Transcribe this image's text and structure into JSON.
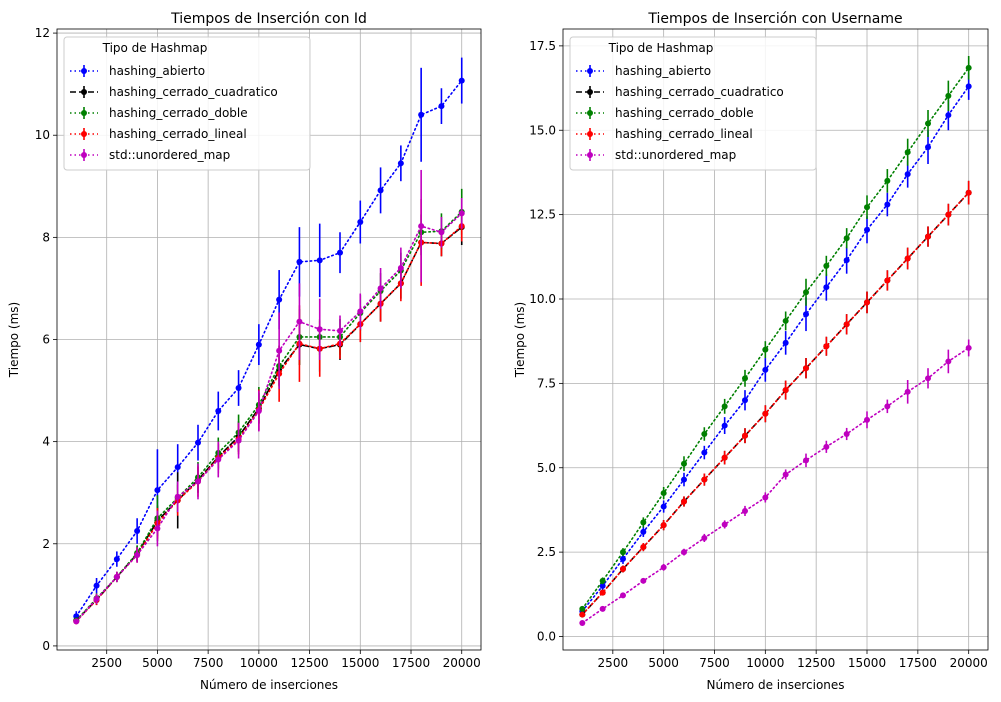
{
  "chart_data": [
    {
      "type": "line",
      "title": "Tiempos de Inserción con Id",
      "xlabel": "Número de inserciones",
      "ylabel": "Tiempo (ms)",
      "xlim": [
        50,
        20950
      ],
      "ylim": [
        -0.08,
        12.08
      ],
      "xticks": [
        2500,
        5000,
        7500,
        10000,
        12500,
        15000,
        17500,
        20000
      ],
      "xtick_labels": [
        "2500",
        "5000",
        "7500",
        "10000",
        "12500",
        "15000",
        "17500",
        "20000"
      ],
      "yticks": [
        0,
        2,
        4,
        6,
        8,
        10,
        12
      ],
      "ytick_labels": [
        "0",
        "2",
        "4",
        "6",
        "8",
        "10",
        "12"
      ],
      "grid": true,
      "legend_title": "Tipo de Hashmap",
      "legend_placement": "upper-left",
      "x": [
        1000,
        2000,
        3000,
        4000,
        5000,
        6000,
        7000,
        8000,
        9000,
        10000,
        11000,
        12000,
        13000,
        14000,
        15000,
        16000,
        17000,
        18000,
        19000,
        20000
      ],
      "series": [
        {
          "name": "hashing_abierto",
          "color": "#0000ff",
          "dash": "dotted",
          "values": [
            0.58,
            1.18,
            1.7,
            2.25,
            3.05,
            3.5,
            3.98,
            4.6,
            5.05,
            5.9,
            6.78,
            7.52,
            7.55,
            7.7,
            8.3,
            8.92,
            9.45,
            10.4,
            10.57,
            11.07
          ],
          "errors": [
            0.1,
            0.15,
            0.15,
            0.25,
            0.8,
            0.45,
            0.35,
            0.38,
            0.35,
            0.4,
            0.58,
            0.68,
            0.72,
            0.4,
            0.42,
            0.45,
            0.35,
            0.92,
            0.35,
            0.45
          ]
        },
        {
          "name": "hashing_cerrado_cuadratico",
          "color": "#000000",
          "dash": "dashed",
          "values": [
            0.5,
            0.9,
            1.35,
            1.8,
            2.45,
            2.85,
            3.25,
            3.7,
            4.1,
            4.65,
            5.4,
            5.9,
            5.82,
            5.9,
            6.3,
            6.7,
            7.1,
            7.9,
            7.88,
            8.2
          ],
          "errors": [
            0.05,
            0.1,
            0.1,
            0.15,
            0.3,
            0.55,
            0.25,
            0.25,
            0.3,
            0.3,
            0.3,
            0.4,
            0.45,
            0.3,
            0.35,
            0.35,
            0.3,
            0.25,
            0.25,
            0.35
          ]
        },
        {
          "name": "hashing_cerrado_doble",
          "color": "#008000",
          "dash": "dotted",
          "values": [
            0.5,
            0.93,
            1.35,
            1.82,
            2.5,
            2.9,
            3.3,
            3.78,
            4.18,
            4.72,
            5.48,
            6.05,
            6.05,
            6.05,
            6.52,
            6.95,
            7.35,
            8.1,
            8.12,
            8.5
          ],
          "errors": [
            0.05,
            0.1,
            0.1,
            0.15,
            0.45,
            0.3,
            0.3,
            0.3,
            0.35,
            0.35,
            0.4,
            0.55,
            0.35,
            0.35,
            0.35,
            0.35,
            0.35,
            0.35,
            0.35,
            0.45
          ]
        },
        {
          "name": "hashing_cerrado_lineal",
          "color": "#ff0000",
          "dash": "dotted",
          "values": [
            0.48,
            0.9,
            1.35,
            1.78,
            2.4,
            2.85,
            3.22,
            3.68,
            4.05,
            4.62,
            5.33,
            5.92,
            5.82,
            5.92,
            6.3,
            6.7,
            7.1,
            7.9,
            7.88,
            8.22
          ],
          "errors": [
            0.05,
            0.1,
            0.1,
            0.15,
            0.3,
            0.3,
            0.3,
            0.3,
            0.3,
            0.4,
            0.55,
            0.75,
            0.55,
            0.3,
            0.35,
            0.35,
            0.35,
            0.85,
            0.25,
            0.3
          ]
        },
        {
          "name": "std::unordered_map",
          "color": "#bf00bf",
          "dash": "dotted",
          "values": [
            0.48,
            0.92,
            1.35,
            1.78,
            2.3,
            2.92,
            3.22,
            3.65,
            4.02,
            4.6,
            5.78,
            6.35,
            6.2,
            6.17,
            6.55,
            7.0,
            7.4,
            8.22,
            8.1,
            8.47
          ],
          "errors": [
            0.05,
            0.1,
            0.1,
            0.15,
            0.35,
            0.3,
            0.35,
            0.35,
            0.35,
            0.4,
            0.75,
            0.75,
            0.6,
            0.3,
            0.35,
            0.4,
            0.4,
            1.1,
            0.3,
            0.3
          ]
        }
      ]
    },
    {
      "type": "line",
      "title": "Tiempos de Inserción con Username",
      "xlabel": "Número de inserciones",
      "ylabel": "Tiempo (ms)",
      "xlim": [
        50,
        20950
      ],
      "ylim": [
        -0.4,
        18.0
      ],
      "xticks": [
        2500,
        5000,
        7500,
        10000,
        12500,
        15000,
        17500,
        20000
      ],
      "xtick_labels": [
        "2500",
        "5000",
        "7500",
        "10000",
        "12500",
        "15000",
        "17500",
        "20000"
      ],
      "yticks": [
        0,
        2.5,
        5,
        7.5,
        10,
        12.5,
        15,
        17.5
      ],
      "ytick_labels": [
        "0.0",
        "2.5",
        "5.0",
        "7.5",
        "10.0",
        "12.5",
        "15.0",
        "17.5"
      ],
      "grid": true,
      "legend_title": "Tipo de Hashmap",
      "legend_placement": "upper-left",
      "x": [
        1000,
        2000,
        3000,
        4000,
        5000,
        6000,
        7000,
        8000,
        9000,
        10000,
        11000,
        12000,
        13000,
        14000,
        15000,
        16000,
        17000,
        18000,
        19000,
        20000
      ],
      "series": [
        {
          "name": "hashing_abierto",
          "color": "#0000ff",
          "dash": "dotted",
          "values": [
            0.75,
            1.5,
            2.3,
            3.1,
            3.85,
            4.65,
            5.45,
            6.25,
            7.0,
            7.9,
            8.7,
            9.55,
            10.35,
            11.15,
            12.05,
            12.8,
            13.7,
            14.5,
            15.45,
            16.3
          ],
          "errors": [
            0.08,
            0.12,
            0.15,
            0.15,
            0.18,
            0.2,
            0.2,
            0.25,
            0.3,
            0.35,
            0.35,
            0.5,
            0.4,
            0.4,
            0.4,
            0.35,
            0.4,
            0.5,
            0.45,
            0.4
          ]
        },
        {
          "name": "hashing_cerrado_cuadratico",
          "color": "#000000",
          "dash": "dashed",
          "values": [
            0.65,
            1.3,
            2.0,
            2.65,
            3.3,
            4.0,
            4.65,
            5.3,
            5.95,
            6.6,
            7.3,
            7.95,
            8.6,
            9.25,
            9.9,
            10.55,
            11.2,
            11.85,
            12.5,
            13.15
          ],
          "errors": [
            0.05,
            0.08,
            0.1,
            0.12,
            0.15,
            0.15,
            0.18,
            0.2,
            0.22,
            0.25,
            0.28,
            0.3,
            0.28,
            0.3,
            0.32,
            0.3,
            0.32,
            0.3,
            0.32,
            0.35
          ]
        },
        {
          "name": "hashing_cerrado_doble",
          "color": "#008000",
          "dash": "dotted",
          "values": [
            0.82,
            1.65,
            2.5,
            3.38,
            4.25,
            5.12,
            6.0,
            6.82,
            7.65,
            8.5,
            9.35,
            10.2,
            10.98,
            11.8,
            12.72,
            13.5,
            14.35,
            15.2,
            16.02,
            16.85
          ],
          "errors": [
            0.05,
            0.1,
            0.12,
            0.15,
            0.18,
            0.22,
            0.2,
            0.22,
            0.25,
            0.25,
            0.28,
            0.4,
            0.3,
            0.3,
            0.35,
            0.35,
            0.4,
            0.4,
            0.45,
            0.35
          ]
        },
        {
          "name": "hashing_cerrado_lineal",
          "color": "#ff0000",
          "dash": "dotted",
          "values": [
            0.65,
            1.3,
            2.0,
            2.65,
            3.3,
            4.0,
            4.65,
            5.3,
            5.95,
            6.6,
            7.3,
            7.95,
            8.6,
            9.25,
            9.9,
            10.55,
            11.2,
            11.85,
            12.5,
            13.15
          ],
          "errors": [
            0.05,
            0.08,
            0.1,
            0.12,
            0.15,
            0.15,
            0.18,
            0.2,
            0.22,
            0.25,
            0.28,
            0.3,
            0.28,
            0.3,
            0.32,
            0.3,
            0.32,
            0.3,
            0.32,
            0.35
          ]
        },
        {
          "name": "std::unordered_map",
          "color": "#bf00bf",
          "dash": "dotted",
          "values": [
            0.4,
            0.82,
            1.22,
            1.65,
            2.05,
            2.5,
            2.92,
            3.32,
            3.72,
            4.12,
            4.8,
            5.22,
            5.62,
            6.0,
            6.42,
            6.82,
            7.25,
            7.65,
            8.15,
            8.55
          ],
          "errors": [
            0.03,
            0.05,
            0.06,
            0.08,
            0.1,
            0.1,
            0.12,
            0.12,
            0.15,
            0.15,
            0.15,
            0.2,
            0.18,
            0.18,
            0.25,
            0.2,
            0.35,
            0.3,
            0.35,
            0.25
          ]
        }
      ]
    }
  ]
}
